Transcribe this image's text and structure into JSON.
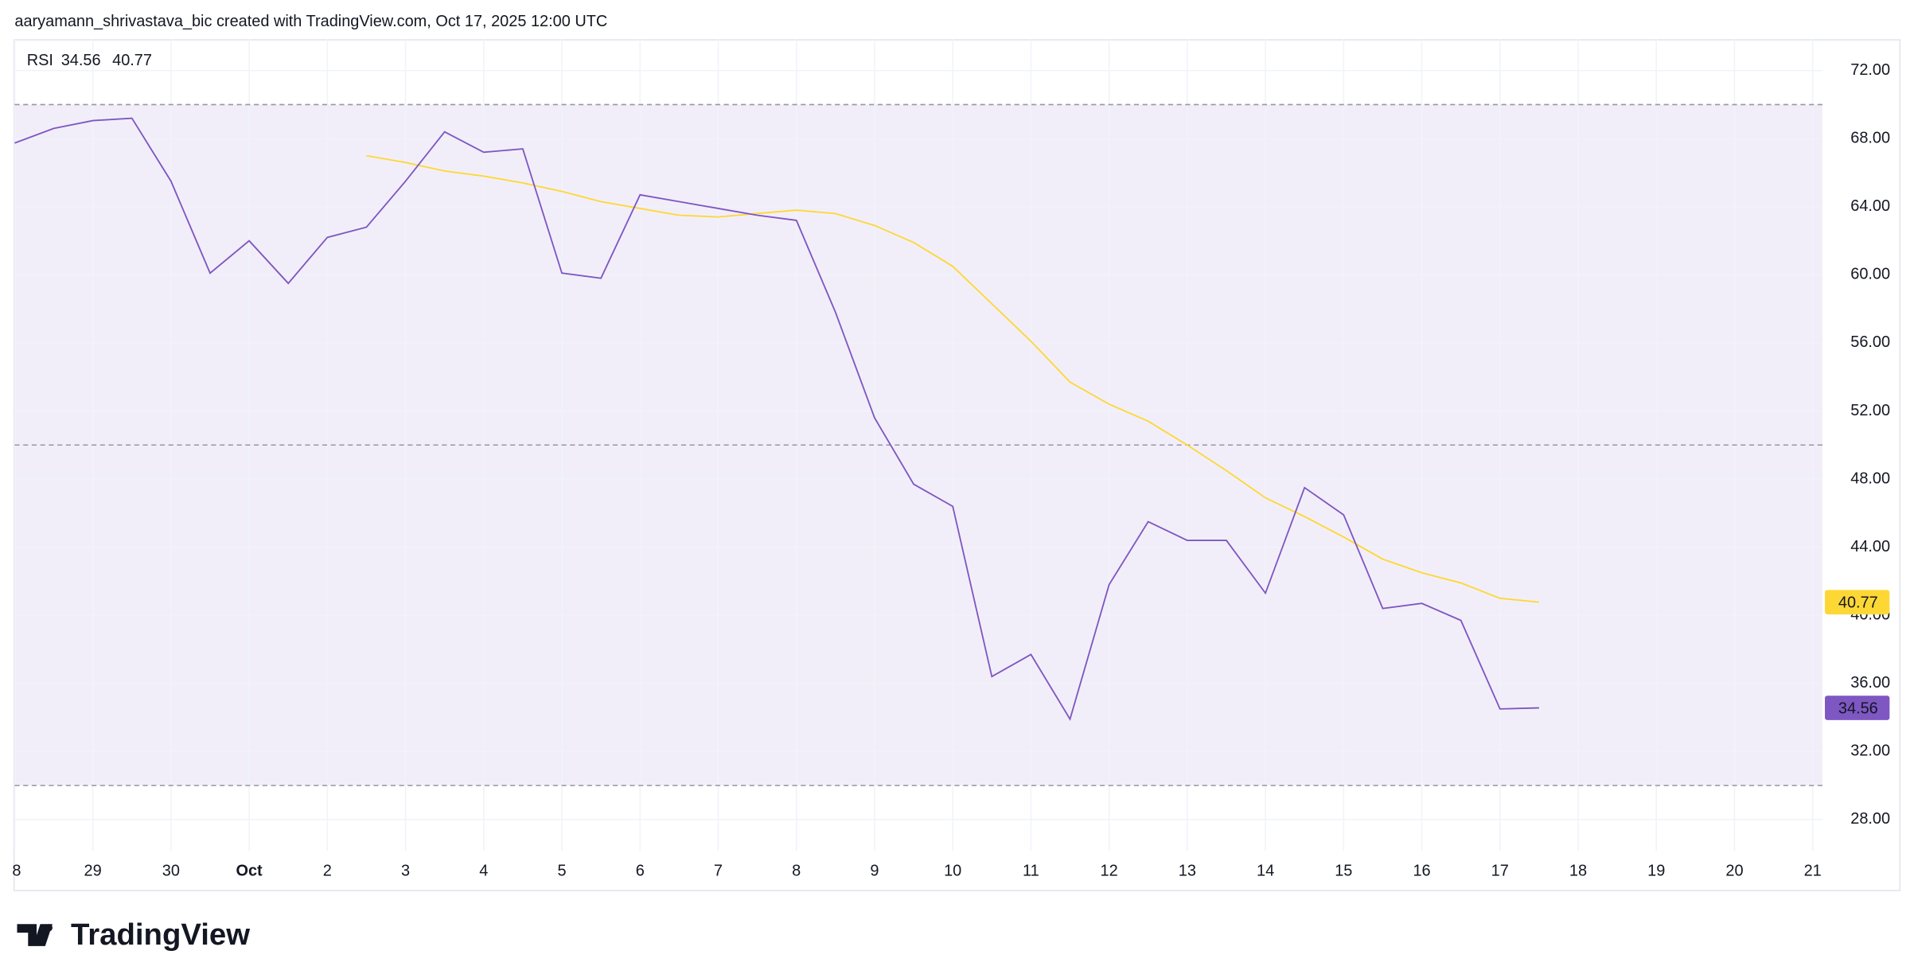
{
  "header": {
    "text": "aaryamann_shrivastava_bic created with TradingView.com, Oct 17, 2025 12:00 UTC"
  },
  "logo": {
    "text": "TradingView"
  },
  "chart_data": {
    "type": "line",
    "legend_title": "RSI",
    "x": [
      0,
      1,
      2,
      3,
      4,
      5,
      6,
      7,
      8,
      9,
      10,
      11,
      12,
      13,
      14,
      15,
      16,
      17,
      18,
      19,
      20,
      21,
      22,
      23,
      24,
      25,
      26,
      27,
      28,
      29,
      30,
      31,
      32,
      33,
      34,
      35,
      36,
      37,
      38,
      39
    ],
    "xlim": [
      0,
      46.25
    ],
    "xticks": [
      {
        "value": 0,
        "label": "8"
      },
      {
        "value": 2,
        "label": "29"
      },
      {
        "value": 4,
        "label": "30"
      },
      {
        "value": 6,
        "label": "Oct"
      },
      {
        "value": 8,
        "label": "2"
      },
      {
        "value": 10,
        "label": "3"
      },
      {
        "value": 12,
        "label": "4"
      },
      {
        "value": 14,
        "label": "5"
      },
      {
        "value": 16,
        "label": "6"
      },
      {
        "value": 18,
        "label": "7"
      },
      {
        "value": 20,
        "label": "8"
      },
      {
        "value": 22,
        "label": "9"
      },
      {
        "value": 24,
        "label": "10"
      },
      {
        "value": 26,
        "label": "11"
      },
      {
        "value": 28,
        "label": "12"
      },
      {
        "value": 30,
        "label": "13"
      },
      {
        "value": 32,
        "label": "14"
      },
      {
        "value": 34,
        "label": "15"
      },
      {
        "value": 36,
        "label": "16"
      },
      {
        "value": 38,
        "label": "17"
      },
      {
        "value": 40,
        "label": "18"
      },
      {
        "value": 42,
        "label": "19"
      },
      {
        "value": 44,
        "label": "20"
      },
      {
        "value": 46,
        "label": "21"
      }
    ],
    "ylim": [
      26.16,
      73.84
    ],
    "yticks": [
      {
        "value": 28,
        "label": "28.00"
      },
      {
        "value": 32,
        "label": "32.00"
      },
      {
        "value": 36,
        "label": "36.00"
      },
      {
        "value": 40,
        "label": "40.00"
      },
      {
        "value": 44,
        "label": "44.00"
      },
      {
        "value": 48,
        "label": "48.00"
      },
      {
        "value": 52,
        "label": "52.00"
      },
      {
        "value": 56,
        "label": "56.00"
      },
      {
        "value": 60,
        "label": "60.00"
      },
      {
        "value": 64,
        "label": "64.00"
      },
      {
        "value": 68,
        "label": "68.00"
      },
      {
        "value": 72,
        "label": "72.00"
      }
    ],
    "levels": [
      30,
      50,
      70
    ],
    "band_color": "#7e57c2",
    "grid": true,
    "series": [
      {
        "name": "34.56",
        "color": "#7e57c2",
        "values": [
          67.74,
          68.6,
          69.06,
          69.2,
          65.5,
          60.1,
          62.0,
          59.5,
          62.2,
          62.8,
          65.5,
          68.4,
          67.2,
          67.4,
          60.1,
          59.8,
          64.7,
          64.3,
          63.9,
          63.5,
          63.2,
          57.8,
          51.6,
          47.7,
          46.4,
          36.4,
          37.7,
          33.9,
          41.8,
          45.5,
          44.4,
          44.4,
          41.3,
          47.5,
          45.9,
          40.4,
          40.7,
          39.7,
          34.5,
          34.56
        ]
      },
      {
        "name": "40.77",
        "color": "#fdd835",
        "values": [
          null,
          null,
          null,
          null,
          null,
          null,
          null,
          null,
          null,
          67.0,
          66.6,
          66.1,
          65.8,
          65.4,
          64.9,
          64.3,
          63.9,
          63.5,
          63.4,
          63.6,
          63.8,
          63.6,
          62.9,
          61.9,
          60.5,
          58.3,
          56.1,
          53.7,
          52.4,
          51.4,
          50.0,
          48.5,
          46.9,
          45.8,
          44.6,
          43.3,
          42.5,
          41.9,
          41.0,
          40.77
        ]
      }
    ]
  }
}
